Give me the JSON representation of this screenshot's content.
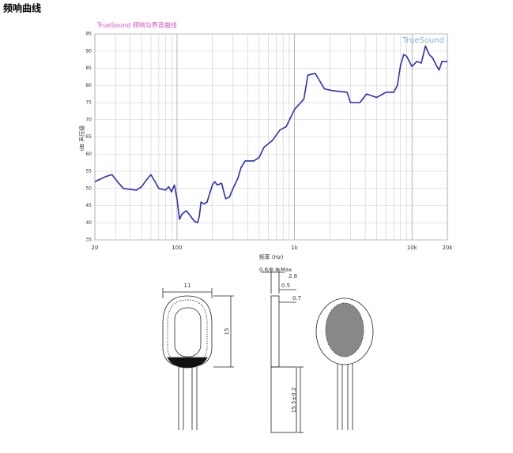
{
  "heading": "频响曲线",
  "chart_data": {
    "type": "line",
    "title": "TrueSound 频响与界音曲线",
    "watermark": "TrueSound",
    "x_label": "频率 (Hz)",
    "y_label": "dB 声压级",
    "log_x": true,
    "grid": true,
    "xlim": [
      20,
      20000
    ],
    "xticks": [
      20,
      100,
      {
        "value": 1000,
        "label": "1k"
      },
      {
        "value": 10000,
        "label": "10k"
      },
      {
        "value": 20000,
        "label": "20k"
      }
    ],
    "ylim": [
      35,
      95
    ],
    "yticks": [
      35,
      40,
      45,
      50,
      55,
      60,
      65,
      70,
      75,
      80,
      85,
      90,
      95
    ],
    "x": [
      20,
      25,
      28,
      32,
      35,
      45,
      50,
      55,
      60,
      65,
      70,
      80,
      85,
      90,
      95,
      100,
      105,
      110,
      120,
      130,
      140,
      150,
      155,
      160,
      170,
      180,
      200,
      210,
      220,
      240,
      250,
      260,
      280,
      300,
      330,
      350,
      380,
      450,
      500,
      550,
      650,
      750,
      850,
      1000,
      1200,
      1300,
      1500,
      1800,
      2100,
      2800,
      3000,
      3600,
      4100,
      5000,
      6000,
      7000,
      7500,
      8000,
      8500,
      9000,
      10000,
      11000,
      12000,
      13000,
      14000,
      15000,
      16000,
      17000,
      18000,
      20000
    ],
    "series": [
      {
        "name": "频响",
        "color": "#2b2fb5",
        "values": [
          52,
          53.5,
          54,
          51.5,
          50,
          49.5,
          50.5,
          52.5,
          54,
          52,
          50,
          49.5,
          50.5,
          49,
          51,
          47,
          41,
          42.5,
          43.5,
          42,
          40.5,
          40,
          42,
          46,
          45.5,
          46,
          51,
          52,
          51,
          51.5,
          49,
          47,
          47.5,
          50,
          53,
          56,
          58,
          58,
          59,
          62,
          64,
          67,
          68,
          73,
          76,
          83,
          83.5,
          79,
          78.5,
          78,
          75,
          75,
          77.5,
          76.5,
          78,
          78,
          80,
          86,
          89,
          88.5,
          85.5,
          87,
          86.5,
          91.5,
          89,
          88,
          86,
          84.5,
          87,
          87
        ]
      }
    ]
  },
  "drawing": {
    "labels": [
      "11",
      "15",
      "0.6/0.8 Max",
      "2.8",
      "0.5",
      "0.7",
      "15.5±0.2"
    ]
  }
}
